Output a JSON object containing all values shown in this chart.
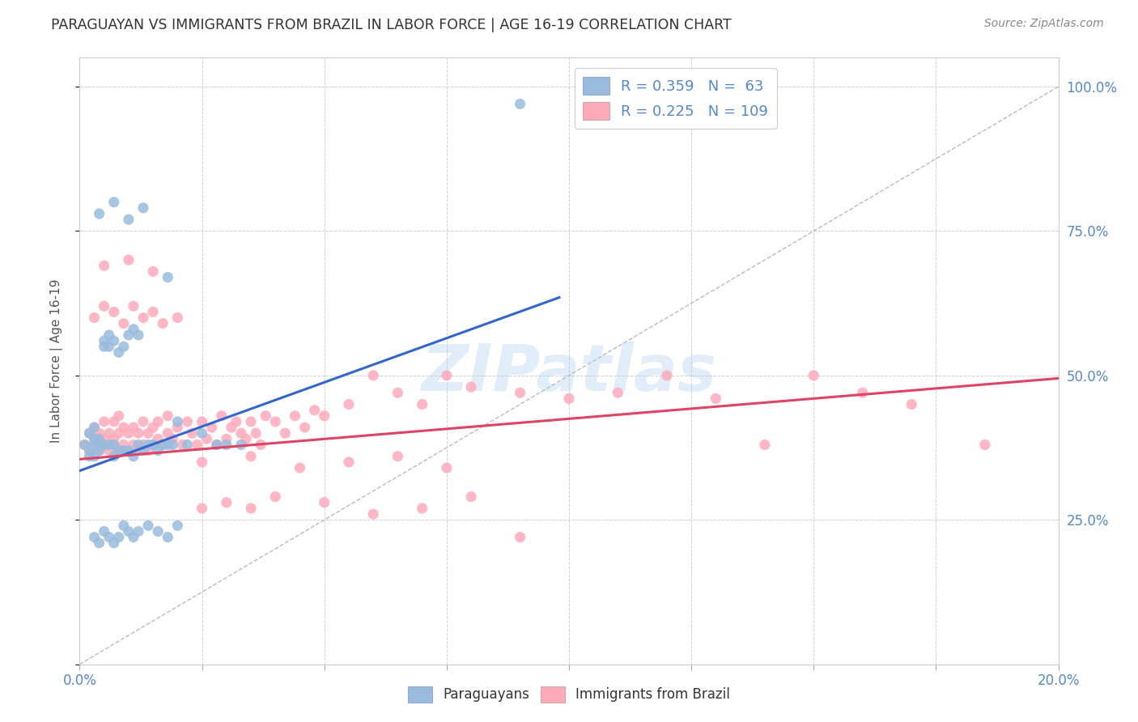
{
  "title": "PARAGUAYAN VS IMMIGRANTS FROM BRAZIL IN LABOR FORCE | AGE 16-19 CORRELATION CHART",
  "source": "Source: ZipAtlas.com",
  "ylabel": "In Labor Force | Age 16-19",
  "watermark": "ZIPatlas",
  "xlim": [
    0.0,
    0.2
  ],
  "ylim": [
    0.0,
    1.05
  ],
  "blue_color": "#99bbdd",
  "pink_color": "#ffaabb",
  "blue_edge": "#7799bb",
  "pink_edge": "#ee8899",
  "blue_R": 0.359,
  "blue_N": 63,
  "pink_R": 0.225,
  "pink_N": 109,
  "blue_line_x": [
    0.0,
    0.098
  ],
  "blue_line_y": [
    0.335,
    0.635
  ],
  "pink_line_x": [
    0.0,
    0.2
  ],
  "pink_line_y": [
    0.355,
    0.495
  ],
  "ref_line_x": [
    0.0,
    0.2
  ],
  "ref_line_y": [
    0.0,
    1.0
  ],
  "blue_x": [
    0.001,
    0.002,
    0.002,
    0.002,
    0.003,
    0.003,
    0.003,
    0.003,
    0.004,
    0.004,
    0.004,
    0.005,
    0.005,
    0.005,
    0.006,
    0.006,
    0.006,
    0.007,
    0.007,
    0.007,
    0.008,
    0.008,
    0.009,
    0.009,
    0.01,
    0.01,
    0.011,
    0.011,
    0.012,
    0.012,
    0.013,
    0.014,
    0.015,
    0.016,
    0.017,
    0.018,
    0.019,
    0.02,
    0.022,
    0.025,
    0.028,
    0.03,
    0.033,
    0.003,
    0.004,
    0.005,
    0.006,
    0.007,
    0.008,
    0.009,
    0.01,
    0.011,
    0.012,
    0.014,
    0.016,
    0.018,
    0.02,
    0.09,
    0.004,
    0.007,
    0.01,
    0.013,
    0.018
  ],
  "blue_y": [
    0.38,
    0.37,
    0.4,
    0.36,
    0.38,
    0.39,
    0.41,
    0.36,
    0.37,
    0.38,
    0.39,
    0.55,
    0.56,
    0.38,
    0.57,
    0.55,
    0.38,
    0.56,
    0.38,
    0.36,
    0.54,
    0.37,
    0.55,
    0.37,
    0.57,
    0.37,
    0.58,
    0.36,
    0.57,
    0.38,
    0.37,
    0.38,
    0.38,
    0.37,
    0.38,
    0.38,
    0.38,
    0.42,
    0.38,
    0.4,
    0.38,
    0.38,
    0.38,
    0.22,
    0.21,
    0.23,
    0.22,
    0.21,
    0.22,
    0.24,
    0.23,
    0.22,
    0.23,
    0.24,
    0.23,
    0.22,
    0.24,
    0.97,
    0.78,
    0.8,
    0.77,
    0.79,
    0.67
  ],
  "pink_x": [
    0.001,
    0.002,
    0.002,
    0.003,
    0.003,
    0.003,
    0.004,
    0.004,
    0.005,
    0.005,
    0.005,
    0.006,
    0.006,
    0.007,
    0.007,
    0.007,
    0.008,
    0.008,
    0.008,
    0.009,
    0.009,
    0.01,
    0.01,
    0.011,
    0.011,
    0.012,
    0.012,
    0.013,
    0.013,
    0.014,
    0.014,
    0.015,
    0.015,
    0.016,
    0.016,
    0.017,
    0.018,
    0.018,
    0.019,
    0.02,
    0.021,
    0.022,
    0.023,
    0.024,
    0.025,
    0.026,
    0.027,
    0.028,
    0.029,
    0.03,
    0.031,
    0.032,
    0.033,
    0.034,
    0.035,
    0.036,
    0.037,
    0.038,
    0.04,
    0.042,
    0.044,
    0.046,
    0.048,
    0.05,
    0.055,
    0.06,
    0.065,
    0.07,
    0.075,
    0.08,
    0.09,
    0.1,
    0.11,
    0.12,
    0.13,
    0.14,
    0.15,
    0.16,
    0.17,
    0.185,
    0.003,
    0.005,
    0.007,
    0.009,
    0.011,
    0.013,
    0.015,
    0.017,
    0.02,
    0.025,
    0.03,
    0.035,
    0.04,
    0.05,
    0.06,
    0.07,
    0.08,
    0.09,
    0.005,
    0.01,
    0.015,
    0.025,
    0.035,
    0.045,
    0.055,
    0.065,
    0.075
  ],
  "pink_y": [
    0.38,
    0.37,
    0.4,
    0.38,
    0.39,
    0.41,
    0.37,
    0.4,
    0.38,
    0.39,
    0.42,
    0.37,
    0.4,
    0.38,
    0.39,
    0.42,
    0.37,
    0.4,
    0.43,
    0.38,
    0.41,
    0.37,
    0.4,
    0.38,
    0.41,
    0.37,
    0.4,
    0.38,
    0.42,
    0.37,
    0.4,
    0.38,
    0.41,
    0.39,
    0.42,
    0.38,
    0.4,
    0.43,
    0.39,
    0.41,
    0.38,
    0.42,
    0.4,
    0.38,
    0.42,
    0.39,
    0.41,
    0.38,
    0.43,
    0.39,
    0.41,
    0.42,
    0.4,
    0.39,
    0.42,
    0.4,
    0.38,
    0.43,
    0.42,
    0.4,
    0.43,
    0.41,
    0.44,
    0.43,
    0.45,
    0.5,
    0.47,
    0.45,
    0.5,
    0.48,
    0.47,
    0.46,
    0.47,
    0.5,
    0.46,
    0.38,
    0.5,
    0.47,
    0.45,
    0.38,
    0.6,
    0.62,
    0.61,
    0.59,
    0.62,
    0.6,
    0.61,
    0.59,
    0.6,
    0.27,
    0.28,
    0.27,
    0.29,
    0.28,
    0.26,
    0.27,
    0.29,
    0.22,
    0.69,
    0.7,
    0.68,
    0.35,
    0.36,
    0.34,
    0.35,
    0.36,
    0.34
  ]
}
